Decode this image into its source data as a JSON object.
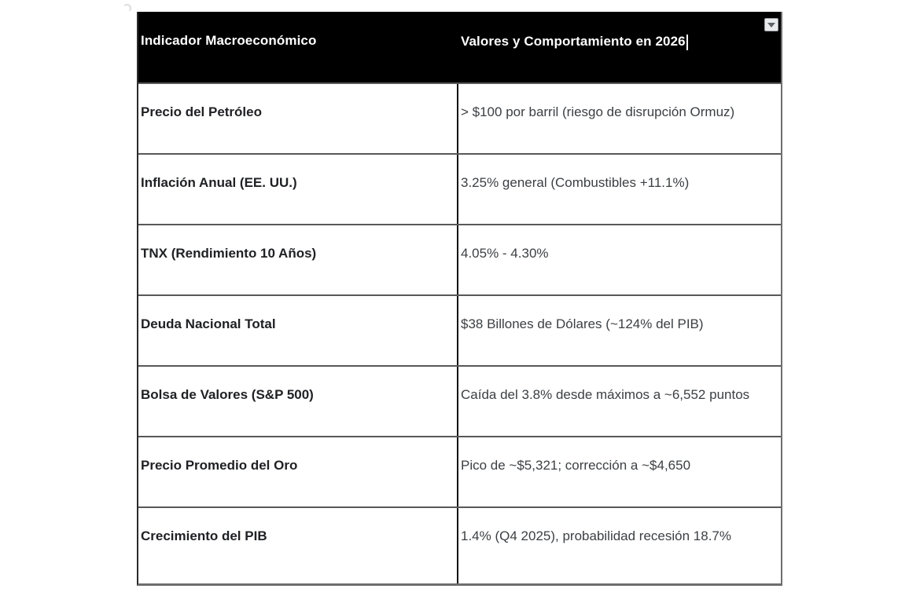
{
  "table": {
    "header": [
      "Indicador Macroeconómico",
      "Valores y Comportamiento en 2026"
    ],
    "rows": [
      {
        "indicator": "Precio del Petróleo",
        "value": "> $100 por barril (riesgo de disrupción Ormuz)"
      },
      {
        "indicator": "Inflación Anual (EE. UU.)",
        "value": "3.25% general (Combustibles +11.1%)"
      },
      {
        "indicator": "TNX (Rendimiento 10 Años)",
        "value": "4.05% - 4.30%"
      },
      {
        "indicator": "Deuda Nacional Total",
        "value": "$38 Billones de Dólares (~124% del PIB)"
      },
      {
        "indicator": "Bolsa de Valores (S&P 500)",
        "value": "Caída del 3.8% desde máximos a ~6,552 puntos"
      },
      {
        "indicator": "Precio Promedio del Oro",
        "value": "Pico de ~$5,321; corrección a ~$4,650"
      },
      {
        "indicator": "Crecimiento del PIB",
        "value": "1.4% (Q4 2025), probabilidad recesión 18.7%"
      }
    ]
  },
  "editing": {
    "caret_in_header_cell": true
  },
  "icons": {
    "dropdown": "chevron-down-icon"
  },
  "colors": {
    "header_bg": "#000000",
    "header_text": "#ffffff",
    "indicator_text": "#202124",
    "value_text": "#3c4043",
    "row_border": "#585858",
    "column_divider": "#101010",
    "outer_border": "#6e6e6e",
    "dropdown_bg": "#e9eaec",
    "dropdown_arrow": "#5f6368",
    "caret": "#ffffff"
  }
}
